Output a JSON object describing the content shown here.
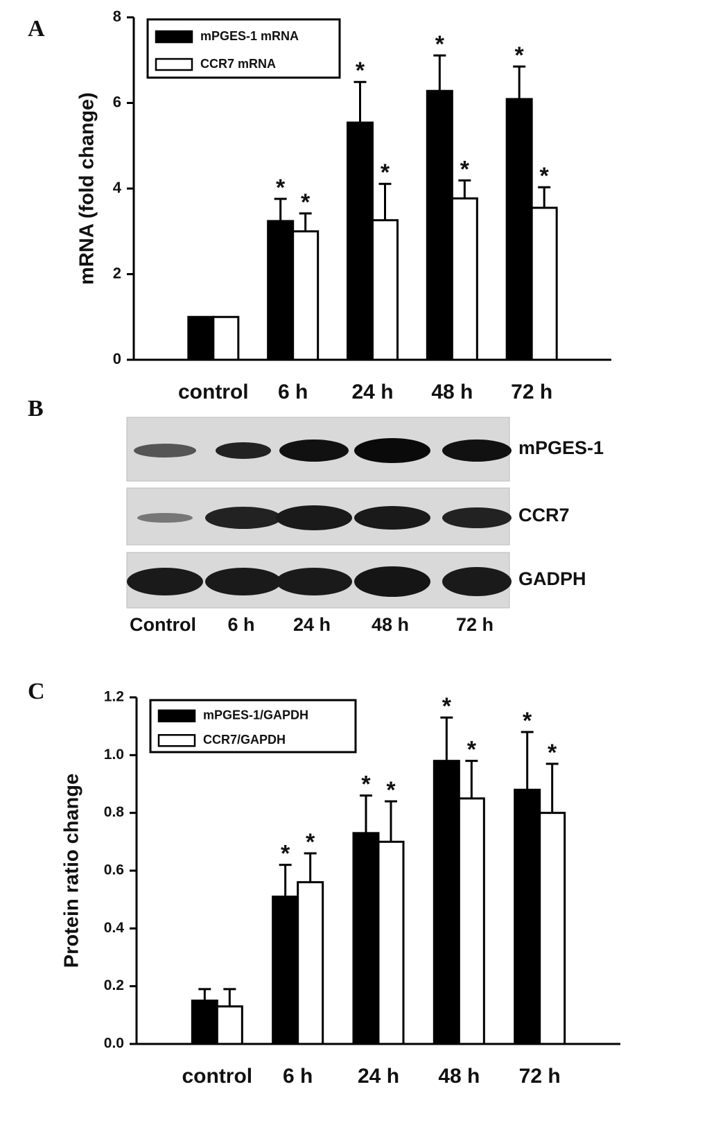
{
  "panels": {
    "a": "A",
    "b": "B",
    "c": "C"
  },
  "chart_data": [
    {
      "type": "bar",
      "y_label": "mRNA (fold change)",
      "categories": [
        "control",
        "6 h",
        "24 h",
        "48 h",
        "72 h"
      ],
      "series": [
        {
          "name": "mPGES-1 mRNA",
          "color": "#000000",
          "values": [
            1.0,
            3.24,
            5.54,
            6.28,
            6.09
          ],
          "errors": [
            null,
            0.52,
            0.95,
            0.83,
            0.76
          ],
          "annotations": [
            null,
            "*",
            "*",
            "*",
            "*"
          ]
        },
        {
          "name": "CCR7 mRNA",
          "color": "#ffffff",
          "values": [
            1.0,
            3.0,
            3.26,
            3.77,
            3.55
          ],
          "errors": [
            null,
            0.42,
            0.85,
            0.42,
            0.48
          ],
          "annotations": [
            null,
            "*",
            "*",
            "*",
            "*"
          ]
        }
      ],
      "ylim": [
        0,
        8
      ],
      "yticks": [
        0,
        2,
        4,
        6,
        8
      ],
      "legend": "upper-left"
    },
    {
      "type": "bar",
      "y_label": "Protein ratio change",
      "categories": [
        "control",
        "6 h",
        "24 h",
        "48 h",
        "72 h"
      ],
      "series": [
        {
          "name": "mPGES-1/GAPDH",
          "color": "#000000",
          "values": [
            0.15,
            0.51,
            0.73,
            0.98,
            0.88
          ],
          "errors": [
            0.04,
            0.11,
            0.13,
            0.15,
            0.2
          ],
          "annotations": [
            null,
            "*",
            "*",
            "*",
            "*"
          ]
        },
        {
          "name": "CCR7/GAPDH",
          "color": "#ffffff",
          "values": [
            0.13,
            0.56,
            0.7,
            0.85,
            0.8
          ],
          "errors": [
            0.06,
            0.1,
            0.14,
            0.13,
            0.17
          ],
          "annotations": [
            null,
            "*",
            "*",
            "*",
            "*"
          ]
        }
      ],
      "ylim": [
        0,
        1.2
      ],
      "yticks": [
        {
          "value": 0,
          "label": "0.0"
        },
        0.2,
        0.4,
        0.6,
        0.8,
        {
          "value": 1,
          "label": "1.0"
        },
        1.2
      ],
      "legend": "upper-left"
    }
  ],
  "blot": {
    "rows": [
      "mPGES-1",
      "CCR7",
      "GADPH"
    ],
    "columns": [
      "Control",
      "6 h",
      "24 h",
      "48 h",
      "72 h"
    ]
  }
}
